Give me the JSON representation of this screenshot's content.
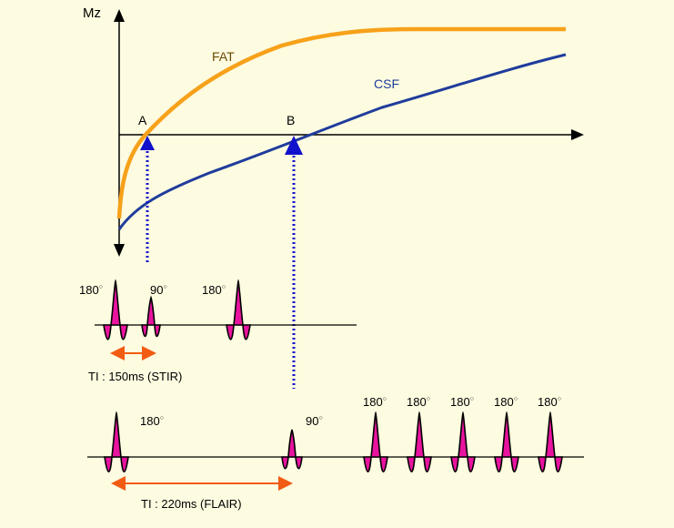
{
  "axis": {
    "y_label": "Mz"
  },
  "curves": {
    "fat": {
      "label": "FAT",
      "color": "#f7a11a"
    },
    "csf": {
      "label": "CSF",
      "color": "#1f3c9c"
    }
  },
  "crossings": {
    "a": "A",
    "b": "B",
    "marker_color": "#1111cc"
  },
  "pulse_color": "#e8139e",
  "stir": {
    "pulses": [
      {
        "label": "180",
        "degree": "○"
      },
      {
        "label": "90",
        "degree": "○"
      },
      {
        "label": "180",
        "degree": "○"
      }
    ],
    "ti_label": "TI : 150ms (STIR)"
  },
  "flair": {
    "pulses": [
      {
        "label": "180",
        "degree": "○"
      },
      {
        "label": "90",
        "degree": "○"
      }
    ],
    "train_label": "180",
    "train_degree": "○",
    "train_count": 5,
    "ti_label": "TI : 220ms (FLAIR)"
  },
  "arrow_color": "#f25b12"
}
